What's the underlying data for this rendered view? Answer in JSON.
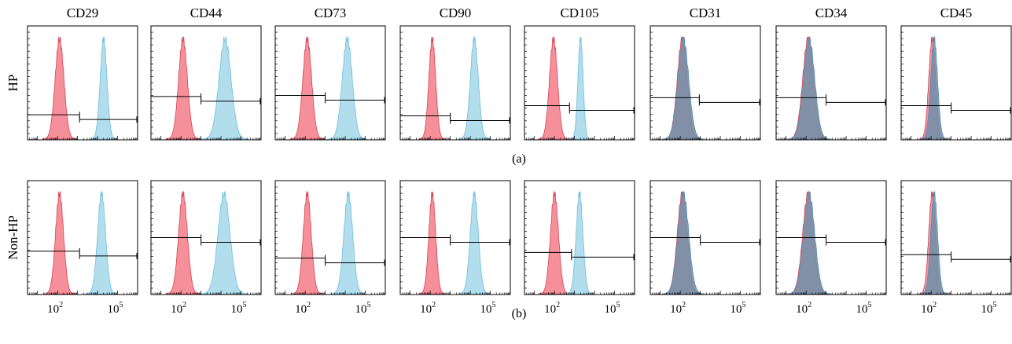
{
  "figure": {
    "columns": [
      "CD29",
      "CD44",
      "CD73",
      "CD90",
      "CD105",
      "CD31",
      "CD34",
      "CD45"
    ],
    "rows": [
      {
        "label": "HP",
        "caption": "(a)"
      },
      {
        "label": "Non-HP",
        "caption": "(b)"
      }
    ],
    "x_tick_labels": [
      {
        "value": 2,
        "base": "10",
        "exp": "2"
      },
      {
        "value": 5,
        "base": "10",
        "exp": "5"
      }
    ],
    "colors": {
      "control": "#f4838f",
      "control_stroke": "#d94456",
      "marker": "#a4d7ea",
      "marker_stroke": "#6ec0dc",
      "overlap": "#6d8fa8",
      "axis": "#000000"
    }
  },
  "chart_data": [
    {
      "type": "area",
      "row": "HP",
      "marker": "CD29",
      "xscale": "log10",
      "xlim": [
        0.5,
        6
      ],
      "ylim": [
        0,
        1
      ],
      "control": {
        "peak_log": 2.1,
        "width_log": 0.22
      },
      "stained": {
        "peak_log": 4.3,
        "width_log": 0.17
      },
      "gate": {
        "y_frac": 0.22,
        "split_log": 3.1
      }
    },
    {
      "type": "area",
      "row": "HP",
      "marker": "CD44",
      "xscale": "log10",
      "xlim": [
        0.5,
        6
      ],
      "ylim": [
        0,
        1
      ],
      "control": {
        "peak_log": 2.1,
        "width_log": 0.22
      },
      "stained": {
        "peak_log": 4.2,
        "width_log": 0.3
      },
      "gate": {
        "y_frac": 0.38,
        "split_log": 3.0
      }
    },
    {
      "type": "area",
      "row": "HP",
      "marker": "CD73",
      "xscale": "log10",
      "xlim": [
        0.5,
        6
      ],
      "ylim": [
        0,
        1
      ],
      "control": {
        "peak_log": 2.1,
        "width_log": 0.22
      },
      "stained": {
        "peak_log": 4.1,
        "width_log": 0.25
      },
      "gate": {
        "y_frac": 0.39,
        "split_log": 3.0
      }
    },
    {
      "type": "area",
      "row": "HP",
      "marker": "CD90",
      "xscale": "log10",
      "xlim": [
        0.5,
        6
      ],
      "ylim": [
        0,
        1
      ],
      "control": {
        "peak_log": 2.1,
        "width_log": 0.17
      },
      "stained": {
        "peak_log": 4.2,
        "width_log": 0.2
      },
      "gate": {
        "y_frac": 0.21,
        "split_log": 3.0
      }
    },
    {
      "type": "area",
      "row": "HP",
      "marker": "CD105",
      "xscale": "log10",
      "xlim": [
        0.5,
        6
      ],
      "ylim": [
        0,
        1
      ],
      "control": {
        "peak_log": 1.95,
        "width_log": 0.2
      },
      "stained": {
        "peak_log": 3.3,
        "width_log": 0.13
      },
      "gate": {
        "y_frac": 0.3,
        "split_log": 2.75
      }
    },
    {
      "type": "area",
      "row": "HP",
      "marker": "CD31",
      "xscale": "log10",
      "xlim": [
        0.5,
        6
      ],
      "ylim": [
        0,
        1
      ],
      "control": {
        "peak_log": 2.1,
        "width_log": 0.25
      },
      "stained": {
        "peak_log": 2.15,
        "width_log": 0.27
      },
      "gate": {
        "y_frac": 0.37,
        "split_log": 2.95
      }
    },
    {
      "type": "area",
      "row": "HP",
      "marker": "CD34",
      "xscale": "log10",
      "xlim": [
        0.5,
        6
      ],
      "ylim": [
        0,
        1
      ],
      "control": {
        "peak_log": 2.1,
        "width_log": 0.27
      },
      "stained": {
        "peak_log": 2.15,
        "width_log": 0.28
      },
      "gate": {
        "y_frac": 0.37,
        "split_log": 3.0
      }
    },
    {
      "type": "area",
      "row": "HP",
      "marker": "CD45",
      "xscale": "log10",
      "xlim": [
        0.5,
        6
      ],
      "ylim": [
        0,
        1
      ],
      "control": {
        "peak_log": 2.05,
        "width_log": 0.17
      },
      "stained": {
        "peak_log": 2.15,
        "width_log": 0.17
      },
      "gate": {
        "y_frac": 0.3,
        "split_log": 3.0
      }
    },
    {
      "type": "area",
      "row": "Non-HP",
      "marker": "CD29",
      "xscale": "log10",
      "xlim": [
        0.5,
        6
      ],
      "ylim": [
        0,
        1
      ],
      "control": {
        "peak_log": 2.1,
        "width_log": 0.2
      },
      "stained": {
        "peak_log": 4.2,
        "width_log": 0.2
      },
      "gate": {
        "y_frac": 0.38,
        "split_log": 3.1
      }
    },
    {
      "type": "area",
      "row": "Non-HP",
      "marker": "CD44",
      "xscale": "log10",
      "xlim": [
        0.5,
        6
      ],
      "ylim": [
        0,
        1
      ],
      "control": {
        "peak_log": 2.1,
        "width_log": 0.22
      },
      "stained": {
        "peak_log": 4.15,
        "width_log": 0.3
      },
      "gate": {
        "y_frac": 0.5,
        "split_log": 3.0
      }
    },
    {
      "type": "area",
      "row": "Non-HP",
      "marker": "CD73",
      "xscale": "log10",
      "xlim": [
        0.5,
        6
      ],
      "ylim": [
        0,
        1
      ],
      "control": {
        "peak_log": 2.1,
        "width_log": 0.2
      },
      "stained": {
        "peak_log": 4.15,
        "width_log": 0.22
      },
      "gate": {
        "y_frac": 0.32,
        "split_log": 3.0
      }
    },
    {
      "type": "area",
      "row": "Non-HP",
      "marker": "CD90",
      "xscale": "log10",
      "xlim": [
        0.5,
        6
      ],
      "ylim": [
        0,
        1
      ],
      "control": {
        "peak_log": 2.1,
        "width_log": 0.17
      },
      "stained": {
        "peak_log": 4.2,
        "width_log": 0.2
      },
      "gate": {
        "y_frac": 0.5,
        "split_log": 3.0
      }
    },
    {
      "type": "area",
      "row": "Non-HP",
      "marker": "CD105",
      "xscale": "log10",
      "xlim": [
        0.5,
        6
      ],
      "ylim": [
        0,
        1
      ],
      "control": {
        "peak_log": 2.0,
        "width_log": 0.2
      },
      "stained": {
        "peak_log": 3.25,
        "width_log": 0.17
      },
      "gate": {
        "y_frac": 0.37,
        "split_log": 2.85
      }
    },
    {
      "type": "area",
      "row": "Non-HP",
      "marker": "CD31",
      "xscale": "log10",
      "xlim": [
        0.5,
        6
      ],
      "ylim": [
        0,
        1
      ],
      "control": {
        "peak_log": 2.1,
        "width_log": 0.25
      },
      "stained": {
        "peak_log": 2.15,
        "width_log": 0.27
      },
      "gate": {
        "y_frac": 0.5,
        "split_log": 3.0
      }
    },
    {
      "type": "area",
      "row": "Non-HP",
      "marker": "CD34",
      "xscale": "log10",
      "xlim": [
        0.5,
        6
      ],
      "ylim": [
        0,
        1
      ],
      "control": {
        "peak_log": 2.1,
        "width_log": 0.27
      },
      "stained": {
        "peak_log": 2.15,
        "width_log": 0.28
      },
      "gate": {
        "y_frac": 0.5,
        "split_log": 3.0
      }
    },
    {
      "type": "area",
      "row": "Non-HP",
      "marker": "CD45",
      "xscale": "log10",
      "xlim": [
        0.5,
        6
      ],
      "ylim": [
        0,
        1
      ],
      "control": {
        "peak_log": 2.05,
        "width_log": 0.17
      },
      "stained": {
        "peak_log": 2.15,
        "width_log": 0.17
      },
      "gate": {
        "y_frac": 0.35,
        "split_log": 3.0
      }
    }
  ]
}
